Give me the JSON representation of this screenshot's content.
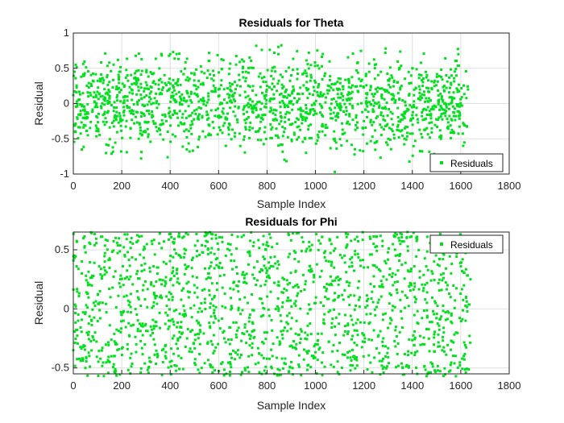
{
  "chart_data": [
    {
      "type": "scatter",
      "title": "Residuals for Theta",
      "xlabel": "Sample Index",
      "ylabel": "Residual",
      "xlim": [
        0,
        1800
      ],
      "ylim": [
        -1,
        1
      ],
      "xticks": [
        0,
        200,
        400,
        600,
        800,
        1000,
        1200,
        1400,
        1600,
        1800
      ],
      "yticks": [
        -1,
        -0.5,
        0,
        0.5,
        1
      ],
      "grid": true,
      "legend": "bottom-right",
      "series": [
        {
          "name": "Residuals",
          "color": "#00e01c",
          "n_points": 1640,
          "distribution": "noise roughly within -0.75 to 0.75",
          "x": [
            0,
            5,
            10,
            20,
            30,
            45,
            60,
            75,
            90,
            110,
            130,
            150,
            170,
            190,
            210,
            240,
            270,
            280,
            300,
            330,
            360,
            390,
            400,
            420,
            450,
            480,
            500,
            530,
            560,
            600,
            630,
            660,
            700,
            740,
            780,
            800,
            830,
            860,
            900,
            940,
            980,
            1000,
            1040,
            1080,
            1100,
            1140,
            1180,
            1200,
            1240,
            1270,
            1290,
            1320,
            1350,
            1380,
            1400,
            1430,
            1460,
            1490,
            1510,
            1540,
            1570,
            1590,
            1610,
            1630
          ],
          "y": [
            0.12,
            -0.3,
            0.55,
            0.05,
            -0.15,
            0.4,
            -0.45,
            0.25,
            -0.05,
            0.35,
            -0.3,
            0.1,
            -0.2,
            0.45,
            -0.1,
            0.2,
            -0.5,
            -0.78,
            0.3,
            -0.25,
            0.15,
            -0.4,
            0.7,
            0.05,
            -0.2,
            0.35,
            -0.1,
            0.45,
            -0.3,
            0.2,
            -0.6,
            0.1,
            0.5,
            -0.35,
            0.15,
            0.25,
            0.72,
            -0.2,
            0.4,
            -0.1,
            -0.3,
            0.3,
            -0.45,
            -0.97,
            0.2,
            -0.15,
            0.35,
            -0.25,
            0.1,
            0.45,
            0.78,
            -0.3,
            0.2,
            -0.1,
            0.5,
            0.15,
            -0.35,
            0.3,
            -0.2,
            0.4,
            -0.4,
            0.7,
            -0.6,
            0.2
          ]
        }
      ]
    },
    {
      "type": "scatter",
      "title": "Residuals for Phi",
      "xlabel": "Sample Index",
      "ylabel": "Residual",
      "xlim": [
        0,
        1800
      ],
      "ylim": [
        -0.55,
        0.65
      ],
      "xticks": [
        0,
        200,
        400,
        600,
        800,
        1000,
        1200,
        1400,
        1600,
        1800
      ],
      "yticks": [
        -0.5,
        0,
        0.5
      ],
      "grid": true,
      "legend": "top-right",
      "series": [
        {
          "name": "Residuals",
          "color": "#00e01c",
          "n_points": 1640,
          "distribution": "roughly uniform noise between -0.57 and 0.6",
          "x": [
            0,
            5,
            10,
            20,
            35,
            50,
            70,
            90,
            110,
            130,
            150,
            175,
            200,
            230,
            260,
            290,
            320,
            350,
            380,
            410,
            440,
            470,
            500,
            530,
            560,
            600,
            640,
            680,
            720,
            760,
            800,
            830,
            870,
            900,
            940,
            980,
            1000,
            1040,
            1080,
            1120,
            1160,
            1200,
            1240,
            1280,
            1320,
            1360,
            1380,
            1410,
            1450,
            1490,
            1530,
            1560,
            1580,
            1600,
            1620,
            1640
          ],
          "y": [
            -0.35,
            0.45,
            0.02,
            -0.1,
            0.3,
            -0.5,
            0.55,
            -0.2,
            0.15,
            0.4,
            -0.45,
            0.6,
            -0.05,
            0.25,
            -0.3,
            0.5,
            -0.15,
            0.35,
            -0.4,
            0.1,
            0.45,
            -0.25,
            0.2,
            -0.5,
            0.3,
            -0.1,
            0.55,
            -0.35,
            0.05,
            0.4,
            -0.2,
            -0.55,
            0.25,
            -0.45,
            0.15,
            0.5,
            -0.3,
            0.1,
            -0.15,
            0.45,
            -0.4,
            0.35,
            0.55,
            -0.25,
            0.2,
            -0.5,
            0.65,
            0.1,
            -0.3,
            0.4,
            -0.2,
            0.3,
            -0.57,
            0.62,
            -0.1,
            0.25
          ]
        }
      ]
    }
  ]
}
